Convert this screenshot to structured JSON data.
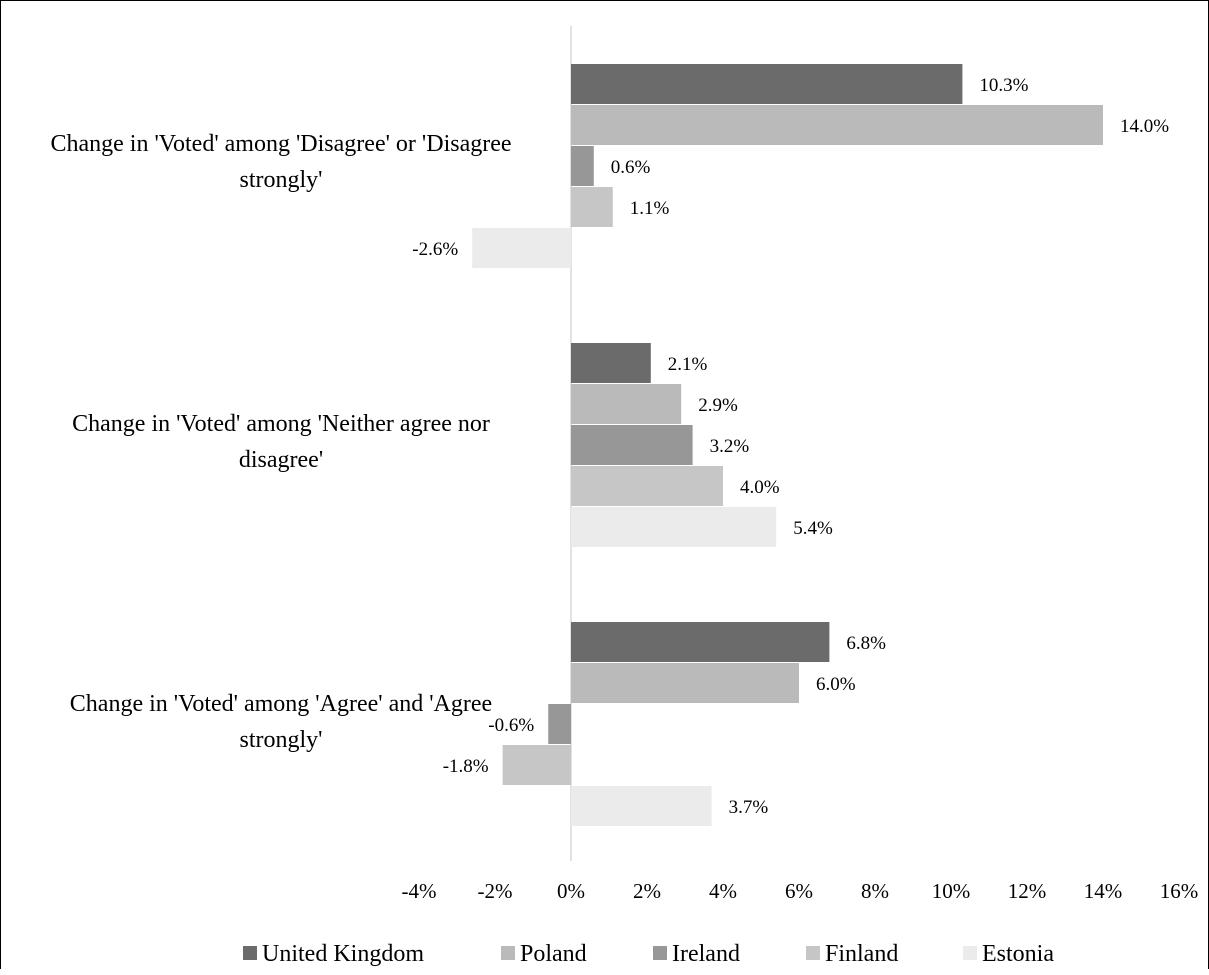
{
  "chart_data": {
    "type": "bar",
    "orientation": "horizontal",
    "categories": [
      "Change in 'Voted' among 'Disagree' or 'Disagree strongly'",
      "Change in 'Voted' among 'Neither agree nor disagree'",
      "Change in 'Voted' among 'Agree' and 'Agree strongly'"
    ],
    "category_lines": [
      [
        "Change in 'Voted' among 'Disagree' or 'Disagree",
        "strongly'"
      ],
      [
        "Change in 'Voted' among 'Neither agree nor",
        "disagree'"
      ],
      [
        "Change in 'Voted' among 'Agree' and 'Agree",
        "strongly'"
      ]
    ],
    "series": [
      {
        "name": "United Kingdom",
        "color": "#6b6b6b",
        "values": [
          10.3,
          2.1,
          6.8
        ],
        "labels": [
          "10.3%",
          "2.1%",
          "6.8%"
        ]
      },
      {
        "name": "Poland",
        "color": "#bababa",
        "values": [
          14.0,
          2.9,
          6.0
        ],
        "labels": [
          "14.0%",
          "2.9%",
          "6.0%"
        ]
      },
      {
        "name": "Ireland",
        "color": "#979797",
        "values": [
          0.6,
          3.2,
          -0.6
        ],
        "labels": [
          "0.6%",
          "3.2%",
          "-0.6%"
        ]
      },
      {
        "name": "Finland",
        "color": "#c6c6c6",
        "values": [
          1.1,
          4.0,
          -1.8
        ],
        "labels": [
          "1.1%",
          "4.0%",
          "-1.8%"
        ]
      },
      {
        "name": "Estonia",
        "color": "#ebebeb",
        "values": [
          -2.6,
          5.4,
          3.7
        ],
        "labels": [
          "-2.6%",
          "5.4%",
          "3.7%"
        ]
      }
    ],
    "x_ticks": [
      -4,
      -2,
      0,
      2,
      4,
      6,
      8,
      10,
      12,
      14,
      16
    ],
    "x_tick_labels": [
      "-4%",
      "-2%",
      "0%",
      "2%",
      "4%",
      "6%",
      "8%",
      "10%",
      "12%",
      "14%",
      "16%"
    ],
    "xlim": [
      -4,
      16
    ],
    "title": "",
    "xlabel": "",
    "ylabel": "",
    "grid": false,
    "legend_position": "bottom"
  }
}
